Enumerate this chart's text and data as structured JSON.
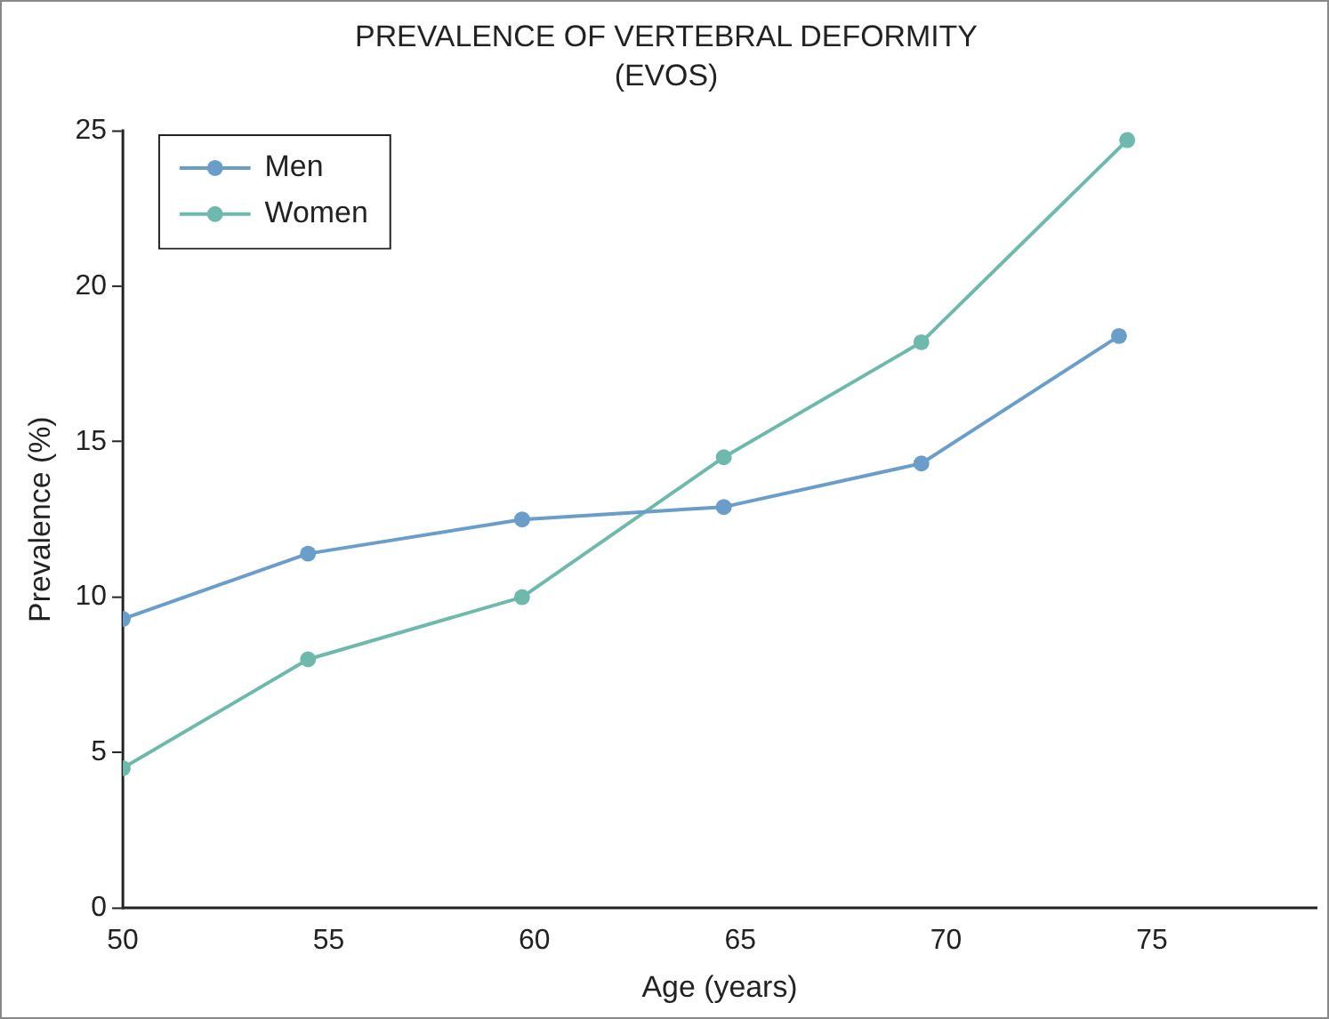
{
  "chart_data": {
    "type": "line",
    "title": "PREVALENCE OF VERTEBRAL DEFORMITY",
    "subtitle": "(EVOS)",
    "xlabel": "Age (years)",
    "ylabel": "Prevalence (%)",
    "xlim": [
      50,
      79
    ],
    "xticks": [
      50,
      55,
      60,
      65,
      70,
      75
    ],
    "ylim": [
      0,
      25
    ],
    "yticks": [
      0,
      5,
      10,
      15,
      20,
      25
    ],
    "grid": false,
    "legend": "top left",
    "marker": "circle",
    "line_style": "solid",
    "series": [
      {
        "name": "Men",
        "color": "#6a9ec8",
        "x": [
          50,
          54.5,
          59.7,
          64.6,
          69.4,
          74.2
        ],
        "values": [
          9.3,
          11.4,
          12.5,
          12.9,
          14.3,
          18.4
        ]
      },
      {
        "name": "Women",
        "color": "#6fb8ac",
        "x": [
          50,
          54.5,
          59.7,
          64.6,
          69.4,
          74.4
        ],
        "values": [
          4.5,
          8.0,
          10.0,
          14.5,
          18.2,
          24.7
        ]
      }
    ]
  }
}
